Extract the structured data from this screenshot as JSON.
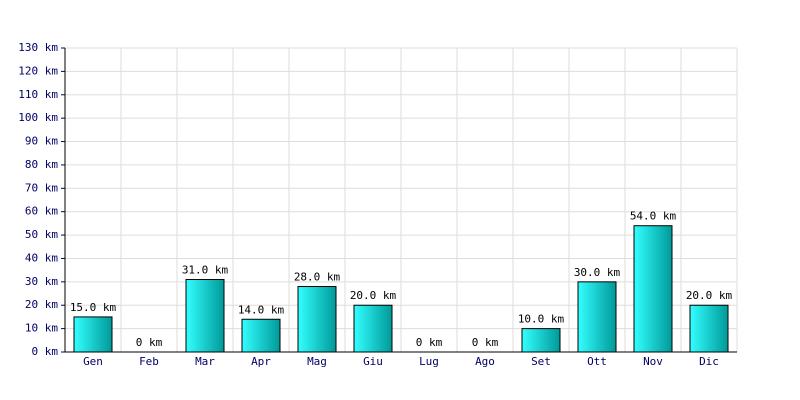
{
  "chart_data": {
    "type": "bar",
    "categories": [
      "Gen",
      "Feb",
      "Mar",
      "Apr",
      "Mag",
      "Giu",
      "Lug",
      "Ago",
      "Set",
      "Ott",
      "Nov",
      "Dic"
    ],
    "values": [
      15,
      0,
      31,
      14,
      28,
      20,
      0,
      0,
      10,
      30,
      54,
      20
    ],
    "value_labels": [
      "15.0 km",
      "0 km",
      "31.0 km",
      "14.0 km",
      "28.0 km",
      "20.0 km",
      "0 km",
      "0 km",
      "10.0 km",
      "30.0 km",
      "54.0 km",
      "20.0 km"
    ],
    "color": "#00cccc",
    "ylim": [
      0,
      130
    ],
    "yticks": [
      {
        "value": 0,
        "label": "0 km"
      },
      {
        "value": 10,
        "label": "10 km"
      },
      {
        "value": 20,
        "label": "20 km"
      },
      {
        "value": 30,
        "label": "30 km"
      },
      {
        "value": 40,
        "label": "40 km"
      },
      {
        "value": 50,
        "label": "50 km"
      },
      {
        "value": 60,
        "label": "60 km"
      },
      {
        "value": 70,
        "label": "70 km"
      },
      {
        "value": 80,
        "label": "80 km"
      },
      {
        "value": 90,
        "label": "90 km"
      },
      {
        "value": 100,
        "label": "100 km"
      },
      {
        "value": 110,
        "label": "110 km"
      },
      {
        "value": 120,
        "label": "120 km"
      },
      {
        "value": 130,
        "label": "130 km"
      }
    ],
    "grid": true
  }
}
